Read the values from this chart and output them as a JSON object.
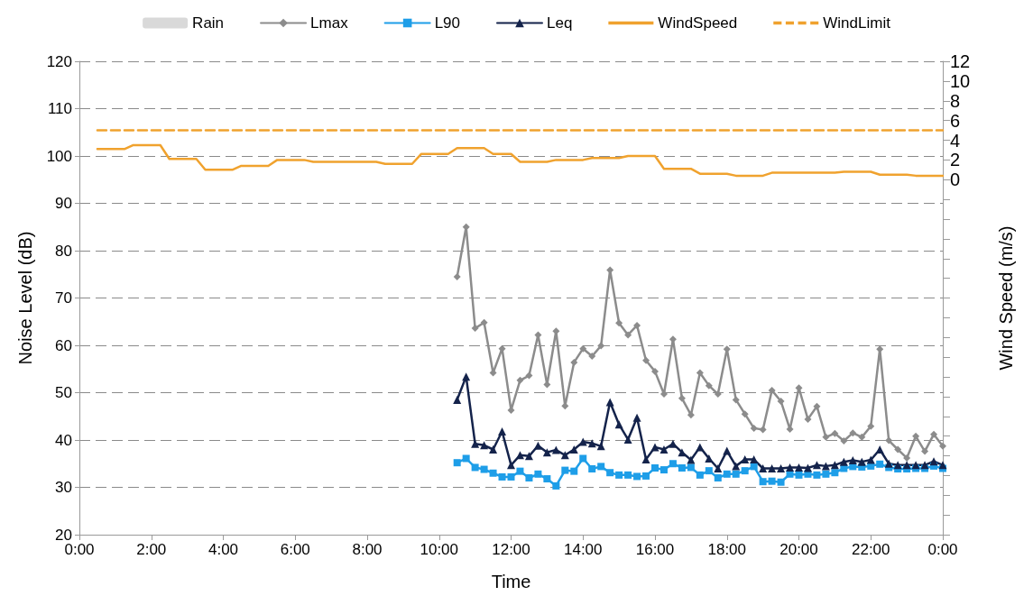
{
  "chart_data": {
    "type": "line",
    "xlabel": "Time",
    "ylabel": "Noise Level (dB)",
    "y2label": "Wind Speed (m/s)",
    "xlim": [
      0,
      24
    ],
    "xticks": [
      {
        "value": 0,
        "label": "0:00"
      },
      {
        "value": 2,
        "label": "2:00"
      },
      {
        "value": 4,
        "label": "4:00"
      },
      {
        "value": 6,
        "label": "6:00"
      },
      {
        "value": 8,
        "label": "8:00"
      },
      {
        "value": 10,
        "label": "10:00"
      },
      {
        "value": 12,
        "label": "12:00"
      },
      {
        "value": 14,
        "label": "14:00"
      },
      {
        "value": 16,
        "label": "16:00"
      },
      {
        "value": 18,
        "label": "18:00"
      },
      {
        "value": 20,
        "label": "20:00"
      },
      {
        "value": 22,
        "label": "22:00"
      },
      {
        "value": 24,
        "label": "0:00"
      }
    ],
    "ylim": [
      20,
      120
    ],
    "yticks": [
      20,
      30,
      40,
      50,
      60,
      70,
      80,
      90,
      100,
      110,
      120
    ],
    "y2lim": [
      -36,
      12
    ],
    "y2ticks": [
      {
        "value": -36,
        "label": null
      },
      {
        "value": -34,
        "label": null
      },
      {
        "value": -32,
        "label": null
      },
      {
        "value": -30,
        "label": null
      },
      {
        "value": -28,
        "label": null
      },
      {
        "value": -26,
        "label": null
      },
      {
        "value": -24,
        "label": null
      },
      {
        "value": -22,
        "label": null
      },
      {
        "value": -20,
        "label": null
      },
      {
        "value": -18,
        "label": null
      },
      {
        "value": -16,
        "label": null
      },
      {
        "value": -14,
        "label": null
      },
      {
        "value": -12,
        "label": null
      },
      {
        "value": -10,
        "label": null
      },
      {
        "value": -8,
        "label": null
      },
      {
        "value": -6,
        "label": null
      },
      {
        "value": -4,
        "label": null
      },
      {
        "value": -2,
        "label": null
      },
      0,
      2,
      4,
      6,
      8,
      10,
      12
    ],
    "grid": "y",
    "legend": "top",
    "x": [
      10.5,
      10.75,
      11,
      11.25,
      11.5,
      11.75,
      12,
      12.25,
      12.5,
      12.75,
      13,
      13.25,
      13.5,
      13.75,
      14,
      14.25,
      14.5,
      14.75,
      15,
      15.25,
      15.5,
      15.75,
      16,
      16.25,
      16.5,
      16.75,
      17,
      17.25,
      17.5,
      17.75,
      18,
      18.25,
      18.5,
      18.75,
      19,
      19.25,
      19.5,
      19.75,
      20,
      20.25,
      20.5,
      20.75,
      21,
      21.25,
      21.5,
      21.75,
      22,
      22.25,
      22.5,
      22.75,
      23,
      23.25,
      23.5,
      23.75,
      24
    ],
    "series": [
      {
        "name": "Rain",
        "type": "bar",
        "color": "#d9d9d9",
        "values": [
          null,
          null,
          null,
          null,
          null,
          null,
          null,
          null,
          null,
          null,
          null,
          null,
          null,
          null,
          null,
          null,
          null,
          null,
          null,
          null,
          null,
          null,
          null,
          null,
          null,
          null,
          null,
          null,
          null,
          null,
          null,
          null,
          null,
          null,
          null,
          null,
          null,
          null,
          null,
          null,
          null,
          null,
          null,
          null,
          null,
          null,
          null,
          null,
          null,
          null,
          null,
          null,
          null,
          null,
          null
        ]
      },
      {
        "name": "Lmax",
        "color": "#8c8c8c",
        "marker": "diamond",
        "values": [
          74.5,
          85.0,
          63.6,
          64.8,
          54.2,
          59.3,
          46.3,
          52.6,
          53.6,
          62.2,
          51.7,
          63.0,
          47.2,
          56.4,
          59.3,
          57.7,
          59.9,
          75.9,
          64.7,
          62.2,
          64.2,
          56.8,
          54.5,
          49.7,
          61.3,
          48.8,
          45.3,
          54.2,
          51.5,
          49.7,
          59.2,
          48.5,
          45.5,
          42.5,
          42.2,
          50.5,
          48.2,
          42.3,
          51.0,
          44.4,
          47.1,
          40.6,
          41.4,
          39.8,
          41.5,
          40.6,
          42.9,
          59.2,
          39.9,
          38.0,
          36.2,
          40.8,
          37.6,
          41.2,
          38.7
        ]
      },
      {
        "name": "L90",
        "color": "#1e9ee8",
        "marker": "square",
        "values": [
          35.2,
          36.1,
          34.2,
          33.8,
          33.0,
          32.2,
          32.2,
          33.4,
          32.0,
          32.8,
          31.8,
          30.3,
          33.6,
          33.4,
          36.1,
          33.9,
          34.4,
          33.1,
          32.6,
          32.6,
          32.3,
          32.4,
          34.1,
          33.7,
          35.0,
          34.1,
          34.2,
          32.6,
          33.5,
          32.0,
          32.8,
          32.8,
          33.5,
          34.4,
          31.2,
          31.3,
          31.1,
          32.8,
          32.6,
          32.8,
          32.6,
          32.8,
          33.1,
          34.0,
          34.4,
          34.3,
          34.5,
          34.9,
          34.2,
          33.9,
          33.9,
          34.0,
          34.0,
          34.5,
          34.0
        ]
      },
      {
        "name": "Leq",
        "color": "#14234b",
        "marker": "triangle",
        "values": [
          48.5,
          53.4,
          39.2,
          38.9,
          38.0,
          41.8,
          34.7,
          36.8,
          36.6,
          38.8,
          37.4,
          37.9,
          36.8,
          38.0,
          39.6,
          39.3,
          38.7,
          48.0,
          43.3,
          40.1,
          44.7,
          35.9,
          38.5,
          38.0,
          39.2,
          37.4,
          35.8,
          38.5,
          36.1,
          34.0,
          37.7,
          34.5,
          35.9,
          35.9,
          34.0,
          34.0,
          34.0,
          34.2,
          34.2,
          34.1,
          34.7,
          34.5,
          34.7,
          35.4,
          35.7,
          35.4,
          35.8,
          38.0,
          35.0,
          34.7,
          34.7,
          34.7,
          34.7,
          35.5,
          34.7
        ]
      },
      {
        "name": "WindSpeed",
        "color": "#f0a22e",
        "marker": "none",
        "axis": "y2",
        "x": [
          0.5,
          1.25,
          1.5,
          2.25,
          2.5,
          3.25,
          3.5,
          4.25,
          4.5,
          5.25,
          5.5,
          6.25,
          6.5,
          8.25,
          8.5,
          9.25,
          9.5,
          10.25,
          10.5,
          11.25,
          11.5,
          12.0,
          12.25,
          13.0,
          13.25,
          14.0,
          14.25,
          15.0,
          15.25,
          16.0,
          16.25,
          17.0,
          17.25,
          18.0,
          18.25,
          19.0,
          19.25,
          21.0,
          21.25,
          22.0,
          22.25,
          23.0,
          23.25,
          24.0
        ],
        "values": [
          3.1,
          3.1,
          3.5,
          3.5,
          2.1,
          2.1,
          1.0,
          1.0,
          1.4,
          1.4,
          2.0,
          2.0,
          1.8,
          1.8,
          1.6,
          1.6,
          2.6,
          2.6,
          3.2,
          3.2,
          2.6,
          2.6,
          1.8,
          1.8,
          2.0,
          2.0,
          2.2,
          2.2,
          2.4,
          2.4,
          1.1,
          1.1,
          0.6,
          0.6,
          0.4,
          0.4,
          0.7,
          0.7,
          0.8,
          0.8,
          0.5,
          0.5,
          0.4,
          0.4
        ]
      },
      {
        "name": "WindLimit",
        "color": "#f0a22e",
        "marker": "none",
        "line_style": "dashed",
        "axis": "y2",
        "x": [
          0.5,
          24
        ],
        "values": [
          5,
          5
        ]
      }
    ]
  }
}
